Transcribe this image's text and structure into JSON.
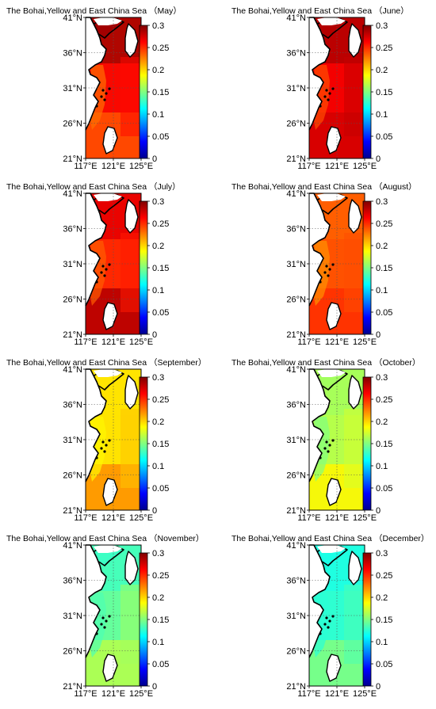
{
  "figure": {
    "region": "The Bohai,Yellow and East China Sea",
    "lat_ticks": [
      "41°N",
      "36°N",
      "31°N",
      "26°N",
      "21°N"
    ],
    "lon_ticks": [
      "117°E",
      "121°E",
      "125°E"
    ],
    "colorbar": {
      "min": 0,
      "max": 0.3,
      "ticks": [
        "0.3",
        "0.25",
        "0.2",
        "0.15",
        "0.1",
        "0.05",
        "0"
      ],
      "colormap": [
        "#00008f",
        "#0000ff",
        "#0080ff",
        "#00ffff",
        "#80ff80",
        "#ffff00",
        "#ff8000",
        "#ff0000",
        "#800000"
      ]
    },
    "panels": [
      {
        "month_label": "（May）",
        "sea_value": 0.25,
        "bohai_value": 0.29,
        "mid_value": 0.265,
        "south_value": 0.24,
        "coastal_value": 0.23,
        "east_value": 0.26
      },
      {
        "month_label": "（June）",
        "sea_value": 0.27,
        "bohai_value": 0.285,
        "mid_value": 0.265,
        "south_value": 0.275,
        "coastal_value": 0.24,
        "east_value": 0.28
      },
      {
        "month_label": "（July）",
        "sea_value": 0.255,
        "bohai_value": 0.27,
        "mid_value": 0.25,
        "south_value": 0.285,
        "coastal_value": 0.235,
        "east_value": 0.255
      },
      {
        "month_label": "（August）",
        "sea_value": 0.235,
        "bohai_value": 0.235,
        "mid_value": 0.24,
        "south_value": 0.25,
        "coastal_value": 0.22,
        "east_value": 0.24
      },
      {
        "month_label": "（September）",
        "sea_value": 0.2,
        "bohai_value": 0.195,
        "mid_value": 0.195,
        "south_value": 0.22,
        "coastal_value": 0.19,
        "east_value": 0.205
      },
      {
        "month_label": "（October）",
        "sea_value": 0.17,
        "bohai_value": 0.16,
        "mid_value": 0.165,
        "south_value": 0.19,
        "coastal_value": 0.15,
        "east_value": 0.175
      },
      {
        "month_label": "（November）",
        "sea_value": 0.15,
        "bohai_value": 0.13,
        "mid_value": 0.14,
        "south_value": 0.165,
        "coastal_value": 0.135,
        "east_value": 0.16
      },
      {
        "month_label": "（December）",
        "sea_value": 0.13,
        "bohai_value": 0.12,
        "mid_value": 0.125,
        "south_value": 0.15,
        "coastal_value": 0.125,
        "east_value": 0.135
      }
    ]
  }
}
